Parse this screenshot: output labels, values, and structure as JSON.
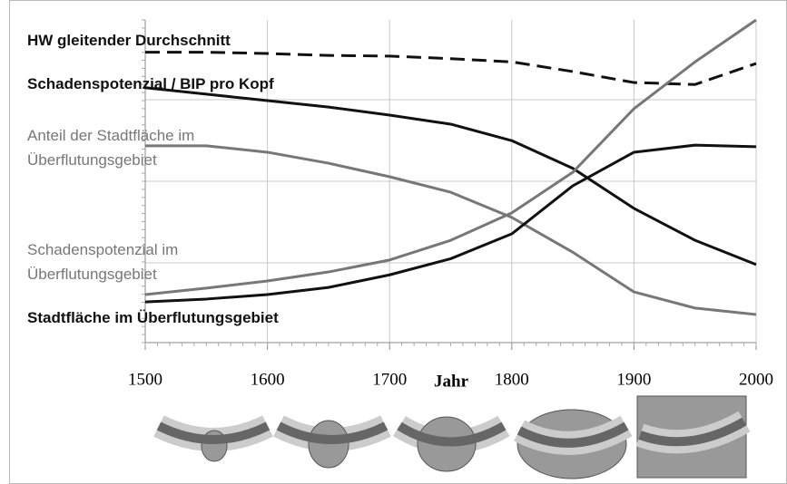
{
  "chart_data": {
    "type": "line",
    "x_label": "Jahr",
    "x": [
      1500,
      1550,
      1600,
      1650,
      1700,
      1750,
      1800,
      1850,
      1900,
      1950,
      2000
    ],
    "xlim": [
      1500,
      2000
    ],
    "xticks": [
      1500,
      1600,
      1700,
      1800,
      1900,
      2000
    ],
    "ylim": [
      0,
      100
    ],
    "grid": true,
    "series": [
      {
        "name": "HW gleitender Durchschnitt",
        "color": "#111111",
        "dash": true,
        "values": [
          90,
          90,
          89.6,
          89,
          88.8,
          88,
          87,
          84,
          80.6,
          80,
          86.5
        ]
      },
      {
        "name": "Schadenspotenzial / BIP pro Kopf",
        "color": "#111111",
        "dash": false,
        "values": [
          79,
          77,
          75,
          73,
          70.5,
          67.7,
          62.6,
          54,
          41.6,
          31.7,
          24.2
        ]
      },
      {
        "name": "Anteil der Stadtfläche im Überflutungsgebiet",
        "color": "#777777",
        "dash": false,
        "values": [
          61,
          61,
          59,
          55.6,
          51.4,
          46.6,
          38.8,
          28,
          15.7,
          10.7,
          8.7
        ]
      },
      {
        "name": "Schadenspotenzial im Überflutungsgebiet",
        "color": "#777777",
        "dash": false,
        "values": [
          14.9,
          16.9,
          19.1,
          21.9,
          25.6,
          31.7,
          40.2,
          52.8,
          72.5,
          87,
          100
        ]
      },
      {
        "name": "Stadtfläche im Überflutungsgebiet",
        "color": "#111111",
        "dash": false,
        "values": [
          12.6,
          13.5,
          14.9,
          17.1,
          21,
          26,
          33.7,
          48.6,
          59,
          61.2,
          60.7
        ]
      }
    ]
  }
}
